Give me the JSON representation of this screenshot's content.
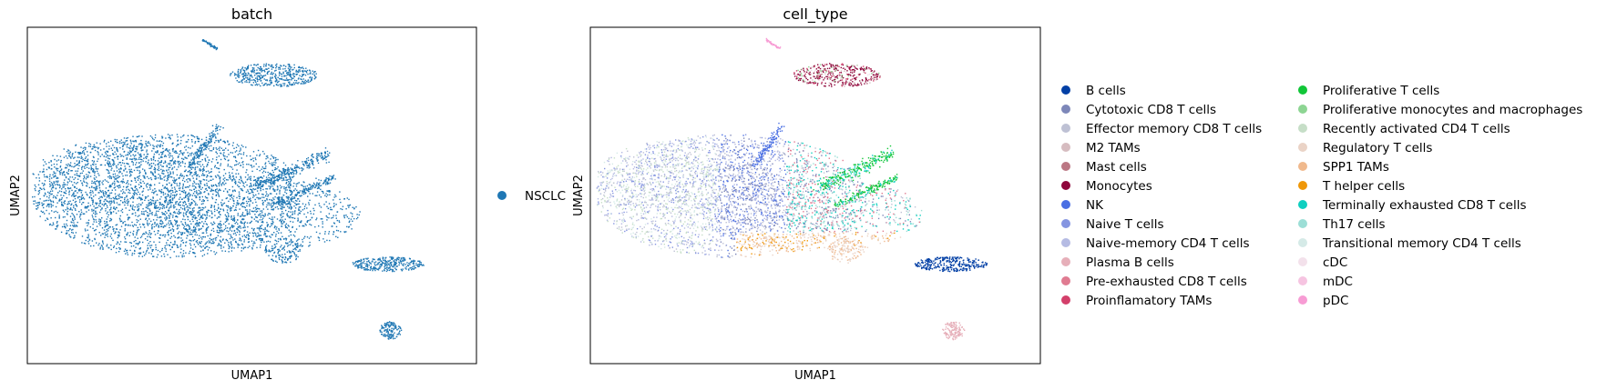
{
  "chart_data": [
    {
      "type": "scatter",
      "title": "batch",
      "xlabel": "UMAP1",
      "ylabel": "UMAP2",
      "grid": false,
      "legend_placement": "right",
      "series": [
        {
          "name": "NSCLC",
          "color": "#1f77b4"
        }
      ]
    },
    {
      "type": "scatter",
      "title": "cell_type",
      "xlabel": "UMAP1",
      "ylabel": "UMAP2",
      "grid": false,
      "legend_placement": "right",
      "series": [
        {
          "name": "B cells",
          "color": "#023fa5"
        },
        {
          "name": "Cytotoxic CD8 T cells",
          "color": "#7d87b9"
        },
        {
          "name": "Effector memory CD8 T cells",
          "color": "#bec1d4"
        },
        {
          "name": "M2 TAMs",
          "color": "#d6bcc0"
        },
        {
          "name": "Mast cells",
          "color": "#bb7784"
        },
        {
          "name": "Monocytes",
          "color": "#8e063b"
        },
        {
          "name": "NK",
          "color": "#4a6fe3"
        },
        {
          "name": "Naive T cells",
          "color": "#8595e1"
        },
        {
          "name": "Naive-memory CD4 T cells",
          "color": "#b5bbe3"
        },
        {
          "name": "Plasma B cells",
          "color": "#e6afb9"
        },
        {
          "name": "Pre-exhausted CD8 T cells",
          "color": "#e07b91"
        },
        {
          "name": "Proinflamatory TAMs",
          "color": "#d33f6a"
        },
        {
          "name": "Proliferative T cells",
          "color": "#11c638"
        },
        {
          "name": "Proliferative monocytes and macrophages",
          "color": "#8dd593"
        },
        {
          "name": "Recently activated CD4 T cells",
          "color": "#c6dec7"
        },
        {
          "name": "Regulatory T cells",
          "color": "#ead3c6"
        },
        {
          "name": "SPP1 TAMs",
          "color": "#f0b98d"
        },
        {
          "name": "T helper cells",
          "color": "#ef9708"
        },
        {
          "name": "Terminally exhausted CD8 T cells",
          "color": "#0fcfc0"
        },
        {
          "name": "Th17 cells",
          "color": "#9cded6"
        },
        {
          "name": "Transitional memory CD4 T cells",
          "color": "#d5eae7"
        },
        {
          "name": "cDC",
          "color": "#f3e1eb"
        },
        {
          "name": "mDC",
          "color": "#f6c4e1"
        },
        {
          "name": "pDC",
          "color": "#f79cd4"
        }
      ]
    }
  ]
}
